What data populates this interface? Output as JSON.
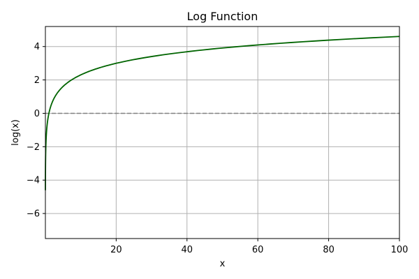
{
  "chart_data": {
    "type": "line",
    "title": "Log Function",
    "xlabel": "x",
    "ylabel": "log(x)",
    "xlim": [
      0.01,
      100
    ],
    "ylim": [
      -7.5,
      5.2
    ],
    "x_ticks": [
      20,
      40,
      60,
      80,
      100
    ],
    "y_ticks": [
      -6,
      -4,
      -2,
      0,
      2,
      4
    ],
    "x_tick_labels": [
      "20",
      "40",
      "60",
      "80",
      "100"
    ],
    "y_tick_labels": [
      "−6",
      "−4",
      "−2",
      "0",
      "2",
      "4"
    ],
    "grid": true,
    "series": [
      {
        "function": "ln(x)",
        "color": "#006400",
        "x": [
          0.01,
          0.05,
          0.1,
          0.2,
          0.5,
          1,
          2,
          5,
          10,
          20,
          40,
          60,
          80,
          100
        ],
        "y": [
          -4.61,
          -3.0,
          -2.3,
          -1.61,
          -0.69,
          0.0,
          0.69,
          1.61,
          2.3,
          3.0,
          3.69,
          4.09,
          4.38,
          4.61
        ]
      }
    ],
    "reference_lines": [
      {
        "orientation": "horizontal",
        "y": 0,
        "style": "dashed",
        "color": "#808080"
      }
    ]
  }
}
